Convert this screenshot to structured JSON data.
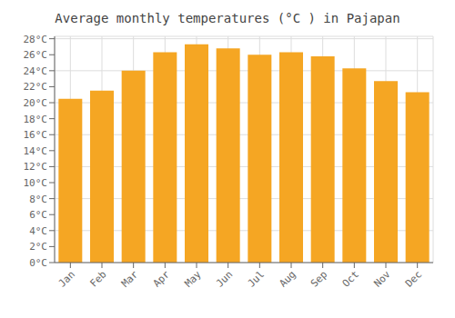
{
  "chart_data": {
    "type": "bar",
    "title": "Average monthly temperatures (°C ) in Pajapan",
    "categories": [
      "Jan",
      "Feb",
      "Mar",
      "Apr",
      "May",
      "Jun",
      "Jul",
      "Aug",
      "Sep",
      "Oct",
      "Nov",
      "Dec"
    ],
    "values": [
      20.5,
      21.5,
      24.0,
      26.3,
      27.3,
      26.8,
      26.0,
      26.3,
      25.8,
      24.3,
      22.7,
      21.3
    ],
    "color": "#F5A623",
    "ylim": [
      0,
      28.3
    ],
    "yticks": [
      {
        "value": 0,
        "label": "0°C"
      },
      {
        "value": 2,
        "label": "2°C"
      },
      {
        "value": 4,
        "label": "4°C"
      },
      {
        "value": 6,
        "label": "6°C"
      },
      {
        "value": 8,
        "label": "8°C"
      },
      {
        "value": 10,
        "label": "10°C"
      },
      {
        "value": 12,
        "label": "12°C"
      },
      {
        "value": 14,
        "label": "14°C"
      },
      {
        "value": 16,
        "label": "16°C"
      },
      {
        "value": 18,
        "label": "18°C"
      },
      {
        "value": 20,
        "label": "20°C"
      },
      {
        "value": 22,
        "label": "22°C"
      },
      {
        "value": 24,
        "label": "24°C"
      },
      {
        "value": 26,
        "label": "26°C"
      },
      {
        "value": 28,
        "label": "28°C"
      }
    ],
    "grid": true
  }
}
